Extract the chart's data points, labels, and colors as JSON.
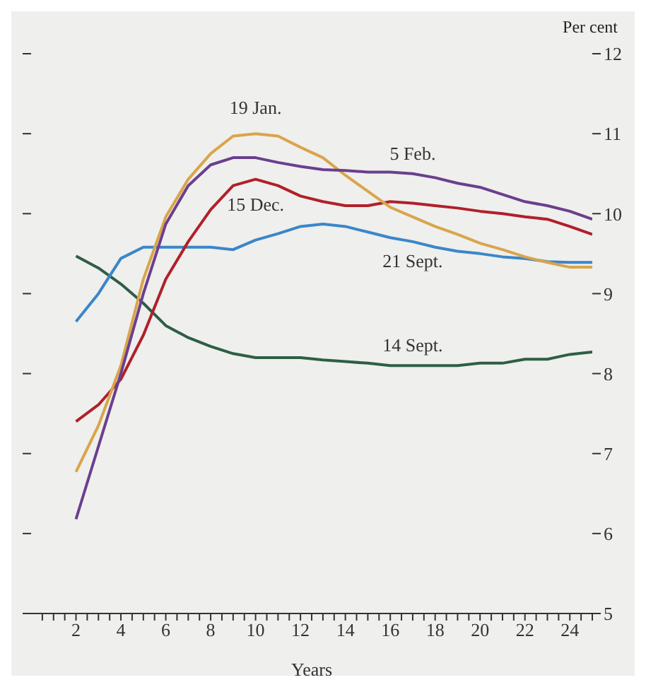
{
  "chart_data": {
    "type": "line",
    "xlabel": "Years",
    "ylabel": "Per cent",
    "x": [
      2,
      3,
      4,
      5,
      6,
      7,
      8,
      9,
      10,
      11,
      12,
      13,
      14,
      15,
      16,
      17,
      18,
      19,
      20,
      21,
      22,
      23,
      24,
      25
    ],
    "series": [
      {
        "name": "14 Sept.",
        "color": "#2e5e45",
        "values": [
          9.47,
          9.32,
          9.12,
          8.88,
          8.6,
          8.45,
          8.34,
          8.25,
          8.2,
          8.2,
          8.2,
          8.17,
          8.15,
          8.13,
          8.1,
          8.1,
          8.1,
          8.1,
          8.13,
          8.13,
          8.18,
          8.18,
          8.24,
          8.27
        ]
      },
      {
        "name": "21 Sept.",
        "color": "#3b86c8",
        "values": [
          8.65,
          9.0,
          9.44,
          9.58,
          9.58,
          9.58,
          9.58,
          9.55,
          9.67,
          9.75,
          9.84,
          9.87,
          9.84,
          9.77,
          9.7,
          9.65,
          9.58,
          9.53,
          9.5,
          9.46,
          9.44,
          9.4,
          9.39,
          9.39
        ]
      },
      {
        "name": "15 Dec.",
        "color": "#b0202a",
        "values": [
          7.4,
          7.61,
          7.93,
          8.48,
          9.18,
          9.65,
          10.05,
          10.35,
          10.43,
          10.35,
          10.22,
          10.15,
          10.1,
          10.1,
          10.15,
          10.13,
          10.1,
          10.07,
          10.03,
          10.0,
          9.96,
          9.93,
          9.84,
          9.74
        ]
      },
      {
        "name": "19 Jan.",
        "color": "#d9a54a",
        "values": [
          6.77,
          7.35,
          8.1,
          9.18,
          9.96,
          10.43,
          10.75,
          10.97,
          11.0,
          10.97,
          10.83,
          10.7,
          10.48,
          10.28,
          10.08,
          9.96,
          9.84,
          9.74,
          9.63,
          9.55,
          9.46,
          9.39,
          9.33,
          9.33
        ]
      },
      {
        "name": "5 Feb.",
        "color": "#6a3f8e",
        "values": [
          6.18,
          7.09,
          8.0,
          9.0,
          9.87,
          10.35,
          10.61,
          10.7,
          10.7,
          10.64,
          10.59,
          10.55,
          10.54,
          10.52,
          10.52,
          10.5,
          10.45,
          10.38,
          10.33,
          10.24,
          10.15,
          10.1,
          10.03,
          9.93
        ]
      }
    ],
    "xlim": [
      0,
      25
    ],
    "xticks": [
      {
        "value": 0.5,
        "label": null
      },
      {
        "value": 1,
        "label": null
      },
      {
        "value": 1.5,
        "label": null
      },
      2,
      {
        "value": 2.5,
        "label": null
      },
      {
        "value": 3,
        "label": null
      },
      {
        "value": 3.5,
        "label": null
      },
      4,
      {
        "value": 4.5,
        "label": null
      },
      {
        "value": 5,
        "label": null
      },
      {
        "value": 5.5,
        "label": null
      },
      6,
      {
        "value": 6.5,
        "label": null
      },
      {
        "value": 7,
        "label": null
      },
      {
        "value": 7.5,
        "label": null
      },
      8,
      {
        "value": 8.5,
        "label": null
      },
      {
        "value": 9,
        "label": null
      },
      {
        "value": 9.5,
        "label": null
      },
      10,
      {
        "value": 10.5,
        "label": null
      },
      {
        "value": 11,
        "label": null
      },
      {
        "value": 11.5,
        "label": null
      },
      12,
      {
        "value": 12.5,
        "label": null
      },
      {
        "value": 13,
        "label": null
      },
      {
        "value": 13.5,
        "label": null
      },
      14,
      {
        "value": 14.5,
        "label": null
      },
      {
        "value": 15,
        "label": null
      },
      {
        "value": 15.5,
        "label": null
      },
      16,
      {
        "value": 16.5,
        "label": null
      },
      {
        "value": 17,
        "label": null
      },
      {
        "value": 17.5,
        "label": null
      },
      18,
      {
        "value": 18.5,
        "label": null
      },
      {
        "value": 19,
        "label": null
      },
      {
        "value": 19.5,
        "label": null
      },
      20,
      {
        "value": 20.5,
        "label": null
      },
      {
        "value": 21,
        "label": null
      },
      {
        "value": 21.5,
        "label": null
      },
      22,
      {
        "value": 22.5,
        "label": null
      },
      {
        "value": 23,
        "label": null
      },
      {
        "value": 23.5,
        "label": null
      },
      24,
      {
        "value": 24.5,
        "label": null
      },
      {
        "value": 25,
        "label": null
      }
    ],
    "ylim": [
      5,
      12
    ],
    "yticks": [
      5,
      6,
      7,
      8,
      9,
      10,
      11,
      12
    ],
    "marker": "none",
    "line_style": "solid"
  }
}
